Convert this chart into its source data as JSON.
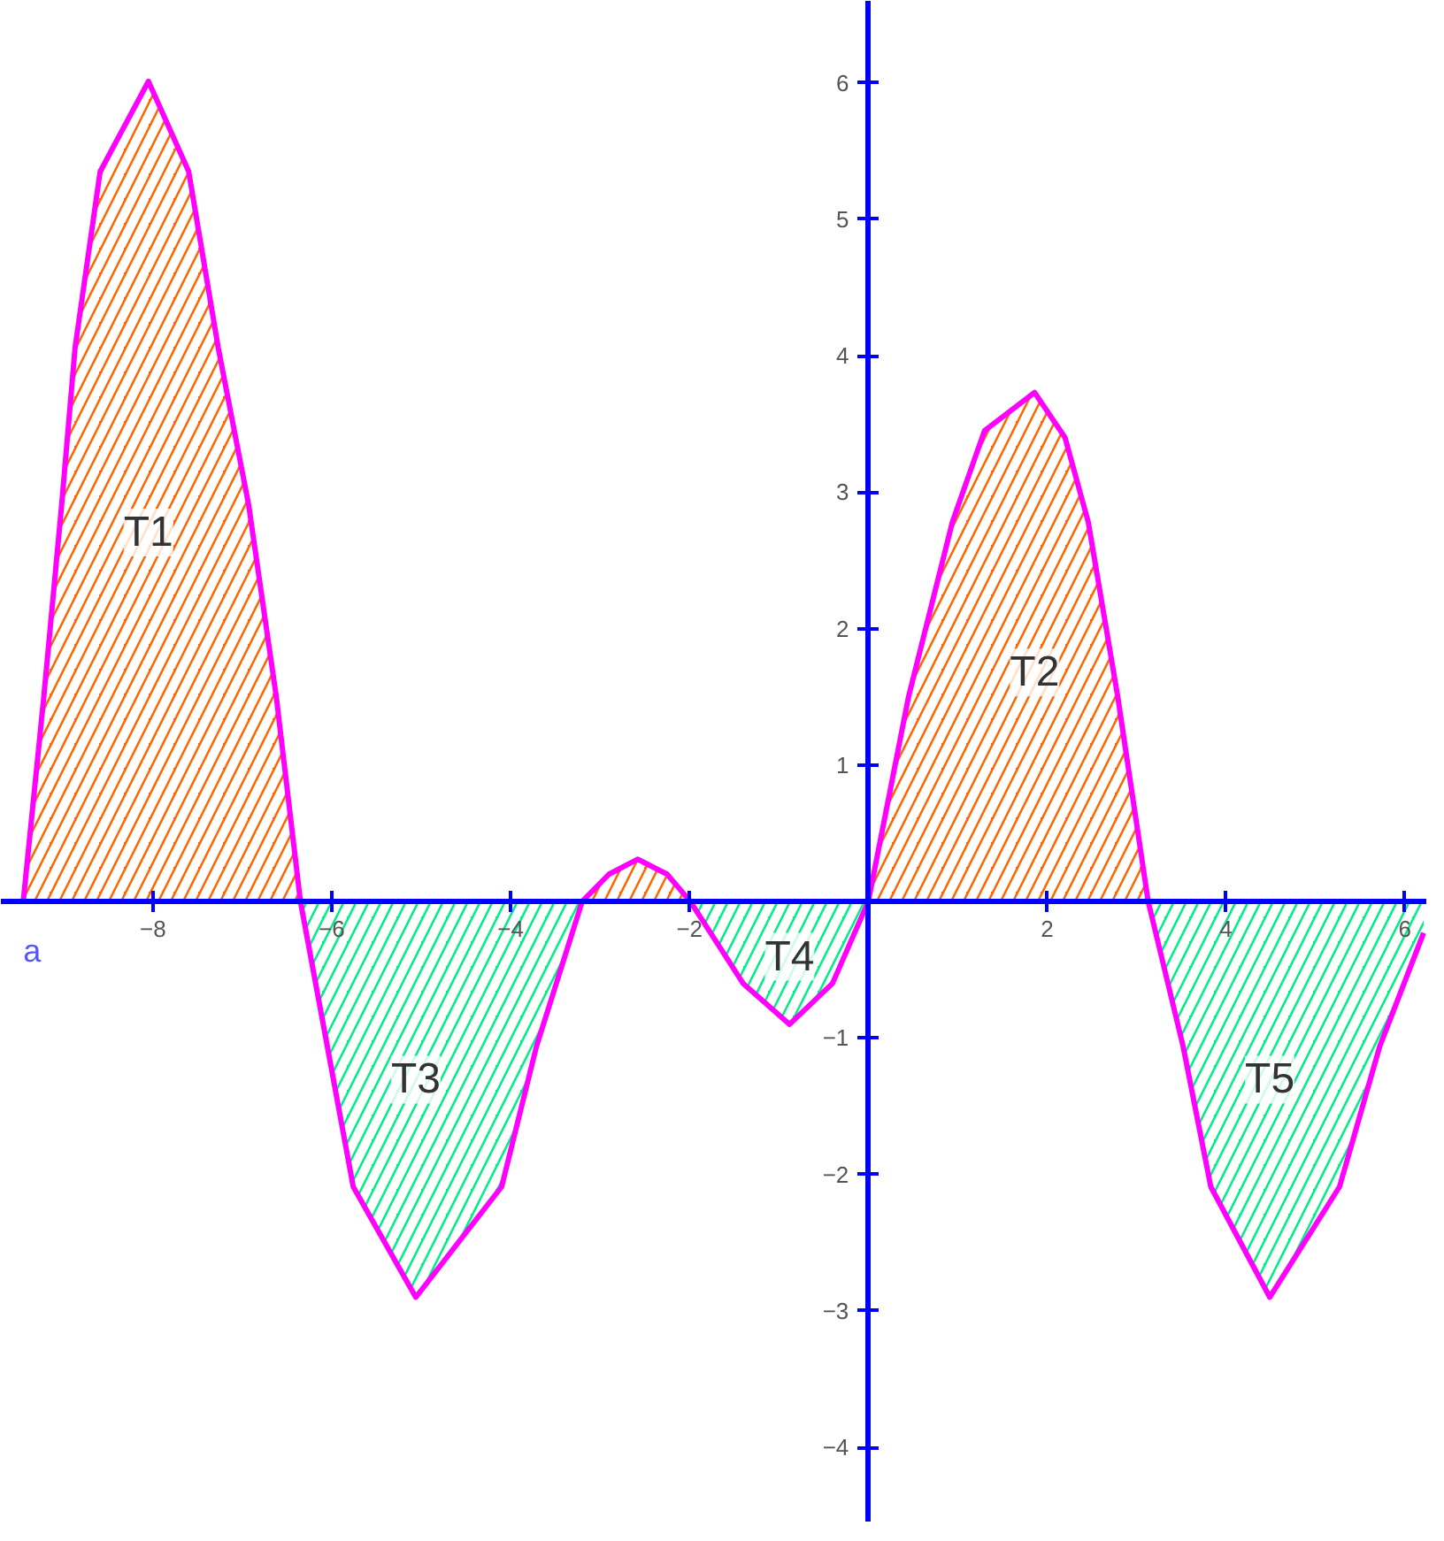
{
  "chart_data": {
    "type": "line",
    "xlim": [
      -9.7,
      6.25
    ],
    "ylim": [
      -4.55,
      6.6
    ],
    "xticks": [
      -8,
      -6,
      -4,
      -2,
      2,
      4,
      6
    ],
    "yticks": [
      -4,
      -3,
      -2,
      -1,
      1,
      2,
      3,
      4,
      5,
      6
    ],
    "grid": false,
    "series": [
      {
        "type": "area",
        "name": "T1",
        "color": "#ff6600",
        "x": [
          -9.45,
          -9.22,
          -9.02,
          -8.87,
          -8.59,
          -8.05,
          -7.6,
          -7.27,
          -6.93,
          -6.62,
          -6.35
        ],
        "values": [
          0,
          1.5,
          2.91,
          4.06,
          5.35,
          6.01,
          5.35,
          4.06,
          2.91,
          1.5,
          0
        ]
      },
      {
        "type": "area",
        "name": "T3",
        "color": "#00ee88",
        "x": [
          -6.35,
          -6.05,
          -5.76,
          -5.06,
          -4.1,
          -3.71,
          -3.2
        ],
        "values": [
          0,
          -1.06,
          -2.09,
          -2.9,
          -2.09,
          -1.06,
          0
        ]
      },
      {
        "type": "area",
        "color": "#ff6600",
        "x": [
          -3.2,
          -2.9,
          -2.58,
          -2.25,
          -1.99
        ],
        "values": [
          0,
          0.2,
          0.31,
          0.2,
          0
        ]
      },
      {
        "type": "area",
        "name": "T4",
        "color": "#00ee88",
        "x": [
          -1.99,
          -1.4,
          -0.88,
          -0.4,
          0
        ],
        "values": [
          0,
          -0.6,
          -0.9,
          -0.6,
          0
        ]
      },
      {
        "type": "area",
        "name": "T2",
        "color": "#ff6600",
        "x": [
          0,
          0.45,
          0.94,
          1.3,
          1.86,
          2.2,
          2.46,
          2.79,
          3.13
        ],
        "values": [
          0,
          1.5,
          2.78,
          3.45,
          3.73,
          3.4,
          2.78,
          1.5,
          0
        ]
      },
      {
        "type": "area",
        "name": "T5",
        "color": "#00ee88",
        "x": [
          3.13,
          3.52,
          3.83,
          4.49,
          5.27,
          5.72,
          6.21
        ],
        "values": [
          0,
          -1.06,
          -2.09,
          -2.9,
          -2.09,
          -1.06,
          -0.23
        ]
      },
      {
        "color": "#ff00ff",
        "x": [
          -9.45,
          -9.22,
          -9.02,
          -8.87,
          -8.59,
          -8.05,
          -7.6,
          -7.27,
          -6.93,
          -6.62,
          -6.35,
          -6.05,
          -5.76,
          -5.06,
          -4.1,
          -3.71,
          -3.2,
          -2.9,
          -2.58,
          -2.25,
          -1.99,
          -1.4,
          -0.88,
          -0.4,
          0,
          0.45,
          0.94,
          1.3,
          1.86,
          2.2,
          2.46,
          2.79,
          3.13,
          3.52,
          3.83,
          4.49,
          5.27,
          5.72,
          6.21
        ],
        "values": [
          0,
          1.5,
          2.91,
          4.06,
          5.35,
          6.01,
          5.35,
          4.06,
          2.91,
          1.5,
          0,
          -1.06,
          -2.09,
          -2.9,
          -2.09,
          -1.06,
          0,
          0.2,
          0.31,
          0.2,
          0,
          -0.6,
          -0.9,
          -0.6,
          0,
          1.5,
          2.78,
          3.45,
          3.73,
          3.4,
          2.78,
          1.5,
          0,
          -1.06,
          -2.09,
          -2.9,
          -2.09,
          -1.06,
          -0.23
        ]
      }
    ],
    "annotations": [
      {
        "text": "a",
        "x": -9.45,
        "y": 0
      }
    ]
  }
}
